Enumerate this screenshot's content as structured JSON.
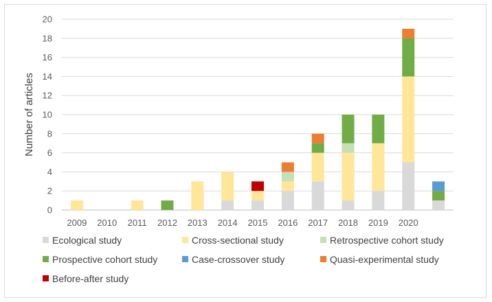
{
  "chart_data": {
    "type": "bar",
    "stacked": true,
    "title": "",
    "xlabel": "",
    "ylabel": "Number of articles",
    "ylim": [
      0,
      20
    ],
    "yticks": [
      0,
      2,
      4,
      6,
      8,
      10,
      12,
      14,
      16,
      18,
      20
    ],
    "categories": [
      "2009",
      "2010",
      "2011",
      "2012",
      "2013",
      "2014",
      "2015",
      "2016",
      "2017",
      "2018",
      "2019",
      "2020",
      ""
    ],
    "grid": true,
    "legend_position": "bottom",
    "series": [
      {
        "name": "Ecological study",
        "color": "#d9d9d9",
        "values": [
          0,
          0,
          0,
          0,
          0,
          1,
          1,
          2,
          3,
          1,
          2,
          5,
          1
        ]
      },
      {
        "name": "Cross-sectional study",
        "color": "#ffe699",
        "values": [
          1,
          0,
          1,
          0,
          3,
          3,
          1,
          1,
          3,
          5,
          5,
          9,
          0
        ]
      },
      {
        "name": "Retrospective cohort study",
        "color": "#c5e0b4",
        "values": [
          0,
          0,
          0,
          0,
          0,
          0,
          0,
          1,
          0,
          1,
          0,
          0,
          0
        ]
      },
      {
        "name": "Prospective cohort study",
        "color": "#70ad47",
        "values": [
          0,
          0,
          0,
          1,
          0,
          0,
          0,
          0,
          1,
          3,
          3,
          4,
          1
        ]
      },
      {
        "name": "Case-crossover study",
        "color": "#5b9bd5",
        "values": [
          0,
          0,
          0,
          0,
          0,
          0,
          0,
          0,
          0,
          0,
          0,
          0,
          1
        ]
      },
      {
        "name": "Quasi-experimental study",
        "color": "#ed7d31",
        "values": [
          0,
          0,
          0,
          0,
          0,
          0,
          0,
          1,
          1,
          0,
          0,
          1,
          0
        ]
      },
      {
        "name": "Before-after study",
        "color": "#c00000",
        "values": [
          0,
          0,
          0,
          0,
          0,
          0,
          1,
          0,
          0,
          0,
          0,
          0,
          0
        ]
      }
    ]
  }
}
